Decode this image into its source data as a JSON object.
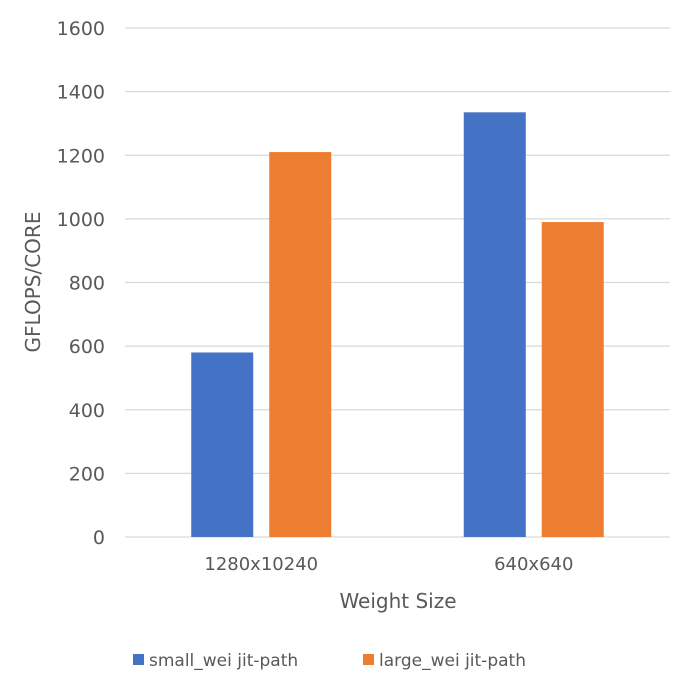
{
  "chart_data": {
    "type": "bar",
    "title": "",
    "xlabel": "Weight Size",
    "ylabel": "GFLOPS/CORE",
    "categories": [
      "1280x10240",
      "640x640"
    ],
    "series": [
      {
        "name": "small_wei jit-path",
        "color": "#4472C4",
        "values": [
          580,
          1335
        ]
      },
      {
        "name": "large_wei jit-path",
        "color": "#ED7D31",
        "values": [
          1210,
          990
        ]
      }
    ],
    "ylim": [
      0,
      1600
    ],
    "yticks": [
      0,
      200,
      400,
      600,
      800,
      1000,
      1200,
      1400,
      1600
    ],
    "grid": true,
    "legend": "bottom"
  }
}
